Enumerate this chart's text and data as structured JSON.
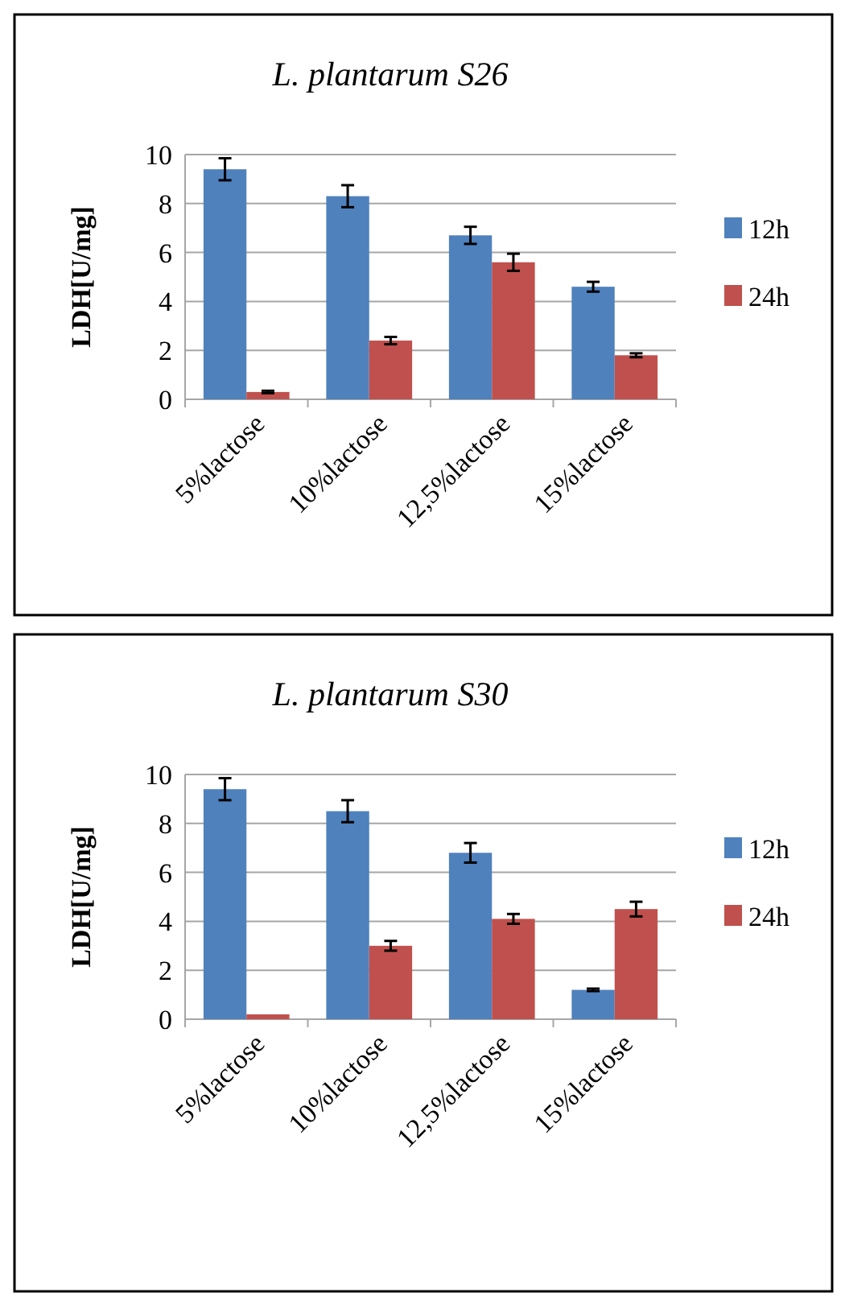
{
  "chart_data": [
    {
      "type": "bar",
      "title": "L. plantarum S26",
      "ylabel": "LDH[U/mg]",
      "categories": [
        "5%lactose",
        "10%lactose",
        "12,5%lactose",
        "15%lactose"
      ],
      "series": [
        {
          "name": "12h",
          "color": "#4f81bd",
          "values": [
            9.4,
            8.3,
            6.7,
            4.6
          ],
          "errors": [
            0.45,
            0.45,
            0.35,
            0.2
          ]
        },
        {
          "name": "24h",
          "color": "#c0504d",
          "values": [
            0.3,
            2.4,
            5.6,
            1.8
          ],
          "errors": [
            0.05,
            0.15,
            0.35,
            0.08
          ]
        }
      ],
      "ylim": [
        0,
        10
      ],
      "yticks": [
        0,
        2,
        4,
        6,
        8,
        10
      ],
      "grid": "y",
      "legend": "right"
    },
    {
      "type": "bar",
      "title": "L. plantarum S30",
      "ylabel": "LDH[U/mg]",
      "categories": [
        "5%lactose",
        "10%lactose",
        "12,5%lactose",
        "15%lactose"
      ],
      "series": [
        {
          "name": "12h",
          "color": "#4f81bd",
          "values": [
            9.4,
            8.5,
            6.8,
            1.2
          ],
          "errors": [
            0.45,
            0.45,
            0.4,
            0.05
          ]
        },
        {
          "name": "24h",
          "color": "#c0504d",
          "values": [
            0.2,
            3.0,
            4.1,
            4.5
          ],
          "errors": [
            null,
            0.2,
            0.2,
            0.3
          ]
        }
      ],
      "ylim": [
        0,
        10
      ],
      "yticks": [
        0,
        2,
        4,
        6,
        8,
        10
      ],
      "grid": "y",
      "legend": "right"
    }
  ]
}
